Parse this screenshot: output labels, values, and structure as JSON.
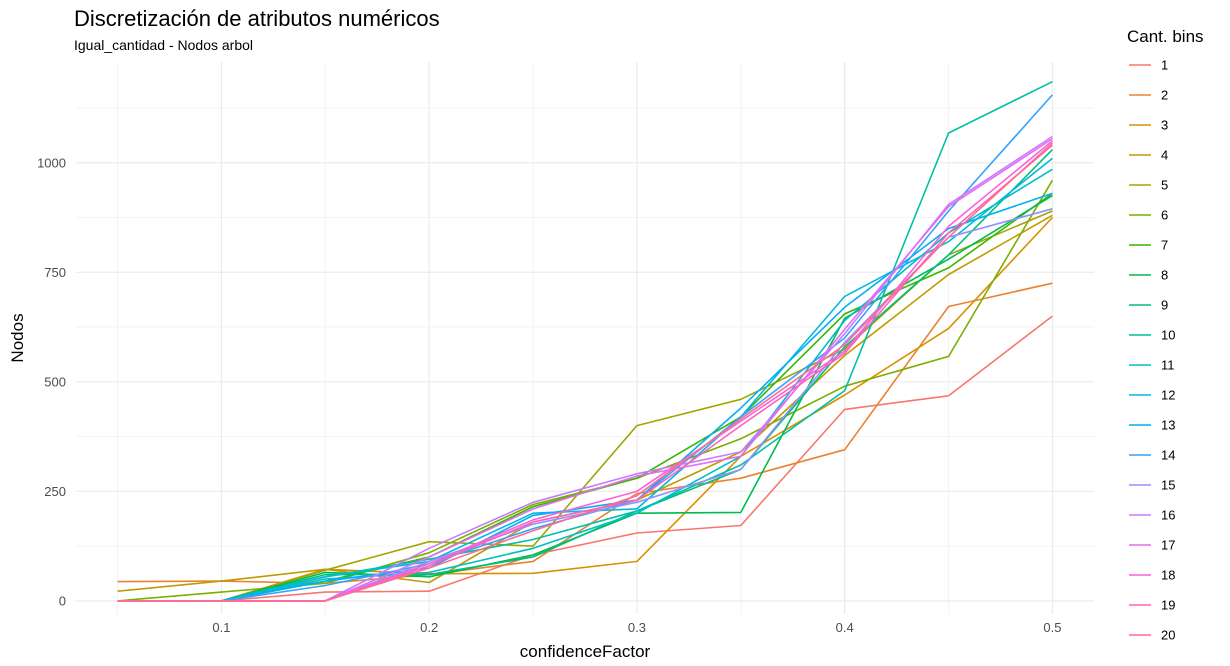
{
  "chart_data": {
    "type": "line",
    "title": "Discretización de atributos numéricos",
    "subtitle": "Igual_cantidad - Nodos arbol",
    "xlabel": "confidenceFactor",
    "ylabel": "Nodos",
    "x": [
      0.05,
      0.1,
      0.15,
      0.2,
      0.25,
      0.3,
      0.35,
      0.4,
      0.45,
      0.5
    ],
    "xlim": [
      0.03,
      0.52
    ],
    "ylim": [
      -30,
      1230
    ],
    "x_ticks": [
      0.1,
      0.2,
      0.3,
      0.4,
      0.5
    ],
    "x_tick_labels": [
      "0.1",
      "0.2",
      "0.3",
      "0.4",
      "0.5"
    ],
    "y_ticks": [
      0,
      250,
      500,
      750,
      1000
    ],
    "y_tick_labels": [
      "0",
      "250",
      "500",
      "750",
      "1000"
    ],
    "grid": true,
    "legend_title": "Cant. bins",
    "legend_position": "right",
    "series": [
      {
        "name": "1",
        "color": "#F8766D",
        "values": [
          0,
          0,
          20,
          22,
          105,
          155,
          172,
          437,
          468,
          650
        ]
      },
      {
        "name": "2",
        "color": "#EA8331",
        "values": [
          44,
          45,
          40,
          60,
          90,
          245,
          280,
          345,
          672,
          725
        ]
      },
      {
        "name": "3",
        "color": "#D89000",
        "values": [
          0,
          0,
          72,
          62,
          63,
          90,
          330,
          470,
          622,
          875
        ]
      },
      {
        "name": "4",
        "color": "#C09B00",
        "values": [
          22,
          45,
          72,
          42,
          180,
          230,
          340,
          560,
          745,
          880
        ]
      },
      {
        "name": "5",
        "color": "#A3A500",
        "values": [
          0,
          0,
          70,
          135,
          125,
          400,
          460,
          575,
          790,
          890
        ]
      },
      {
        "name": "6",
        "color": "#7CAE00",
        "values": [
          0,
          20,
          40,
          110,
          220,
          280,
          370,
          490,
          558,
          960
        ]
      },
      {
        "name": "7",
        "color": "#39B600",
        "values": [
          0,
          0,
          45,
          100,
          215,
          280,
          420,
          655,
          760,
          930
        ]
      },
      {
        "name": "8",
        "color": "#00BB4E",
        "values": [
          0,
          0,
          65,
          55,
          105,
          200,
          202,
          645,
          780,
          925
        ]
      },
      {
        "name": "9",
        "color": "#00BF7D",
        "values": [
          0,
          0,
          60,
          60,
          100,
          205,
          300,
          580,
          790,
          1030
        ]
      },
      {
        "name": "10",
        "color": "#00C1A3",
        "values": [
          0,
          0,
          55,
          95,
          140,
          205,
          310,
          480,
          1068,
          1185
        ]
      },
      {
        "name": "11",
        "color": "#00BFC4",
        "values": [
          0,
          0,
          50,
          65,
          120,
          200,
          330,
          640,
          840,
          985
        ]
      },
      {
        "name": "12",
        "color": "#00BAE0",
        "values": [
          0,
          0,
          55,
          90,
          200,
          210,
          420,
          695,
          820,
          1010
        ]
      },
      {
        "name": "13",
        "color": "#00B0F6",
        "values": [
          0,
          0,
          45,
          75,
          195,
          230,
          440,
          670,
          850,
          930
        ]
      },
      {
        "name": "14",
        "color": "#35A2FF",
        "values": [
          0,
          0,
          35,
          85,
          165,
          230,
          420,
          600,
          890,
          1155
        ]
      },
      {
        "name": "15",
        "color": "#9590FF",
        "values": [
          0,
          0,
          0,
          90,
          175,
          225,
          300,
          590,
          830,
          895
        ]
      },
      {
        "name": "16",
        "color": "#C77CFF",
        "values": [
          0,
          0,
          0,
          120,
          225,
          290,
          340,
          610,
          905,
          1060
        ]
      },
      {
        "name": "17",
        "color": "#E76BF3",
        "values": [
          0,
          0,
          0,
          100,
          210,
          285,
          330,
          620,
          900,
          1055
        ]
      },
      {
        "name": "18",
        "color": "#FA62DB",
        "values": [
          0,
          0,
          0,
          85,
          185,
          250,
          410,
          570,
          855,
          1050
        ]
      },
      {
        "name": "19",
        "color": "#FF62BC",
        "values": [
          0,
          0,
          0,
          80,
          180,
          230,
          400,
          565,
          840,
          1040
        ]
      },
      {
        "name": "20",
        "color": "#FF6C91",
        "values": [
          0,
          0,
          0,
          75,
          160,
          240,
          415,
          585,
          830,
          1045
        ]
      }
    ]
  }
}
